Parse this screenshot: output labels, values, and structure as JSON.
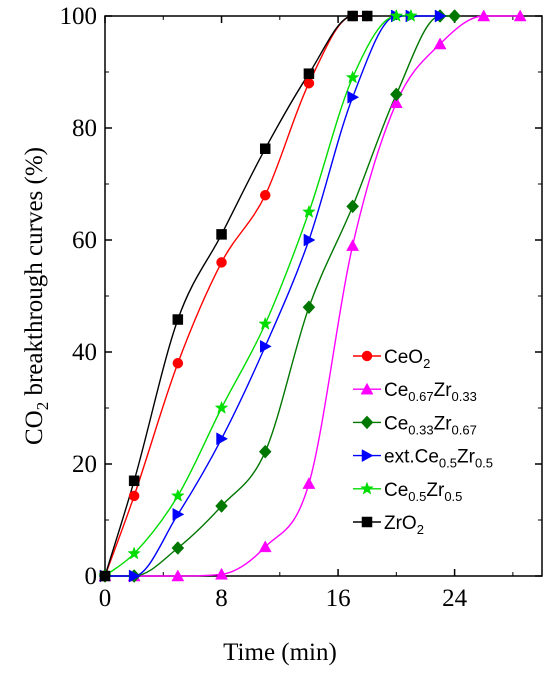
{
  "chart_data": {
    "type": "line",
    "title": "",
    "xlabel": "Time (min)",
    "ylabel": "CO2 breakthrough curves (%)",
    "ylabel_parts": {
      "main": "CO",
      "sub": "2",
      "rest": " breakthrough curves (%)"
    },
    "xlim": [
      0,
      30
    ],
    "ylim": [
      0,
      100
    ],
    "xticks": [
      0,
      8,
      16,
      24
    ],
    "yticks": [
      0,
      20,
      40,
      60,
      80,
      100
    ],
    "legend_position": "bottom-right",
    "series": [
      {
        "name": "CeO2",
        "label_parts": [
          [
            "CeO",
            ""
          ],
          [
            "2",
            "sub"
          ]
        ],
        "color": "#ff0000",
        "marker": "circle",
        "x": [
          0,
          2,
          5,
          8,
          11,
          14,
          17,
          18
        ],
        "y": [
          0,
          14.3,
          38,
          56,
          68,
          88,
          100,
          100
        ]
      },
      {
        "name": "Ce0.67Zr0.33",
        "label_parts": [
          [
            "Ce",
            ""
          ],
          [
            "0.67",
            "sub"
          ],
          [
            "Zr",
            ""
          ],
          [
            "0.33",
            "sub"
          ]
        ],
        "color": "#ff00ff",
        "marker": "triangle-up",
        "x": [
          0,
          2,
          5,
          8,
          11,
          14,
          17,
          20,
          23,
          26,
          28.5
        ],
        "y": [
          0,
          0,
          0,
          0.3,
          5.2,
          16.5,
          59,
          84.5,
          95,
          100,
          100
        ]
      },
      {
        "name": "Ce0.33Zr0.67",
        "label_parts": [
          [
            "Ce",
            ""
          ],
          [
            "0.33",
            "sub"
          ],
          [
            "Zr",
            ""
          ],
          [
            "0.67",
            "sub"
          ]
        ],
        "color": "#007700",
        "marker": "diamond",
        "x": [
          0,
          2,
          5,
          8,
          11,
          14,
          17,
          20,
          23,
          24
        ],
        "y": [
          0,
          0,
          5,
          12.5,
          22.2,
          48,
          66,
          86,
          100,
          100
        ]
      },
      {
        "name": "ext.Ce0.5Zr0.5",
        "label_parts": [
          [
            "ext.Ce",
            ""
          ],
          [
            "0.5",
            "sub"
          ],
          [
            "Zr",
            ""
          ],
          [
            "0.5",
            "sub"
          ]
        ],
        "color": "#0000ff",
        "marker": "triangle-right",
        "x": [
          0,
          2,
          5,
          8,
          11,
          14,
          17,
          20,
          21,
          23
        ],
        "y": [
          0,
          0,
          11,
          24.5,
          41,
          60,
          85.5,
          100,
          100,
          100
        ]
      },
      {
        "name": "Ce0.5Zr0.5",
        "label_parts": [
          [
            "Ce",
            ""
          ],
          [
            "0.5",
            "sub"
          ],
          [
            "Zr",
            ""
          ],
          [
            "0.5",
            "sub"
          ]
        ],
        "color": "#00dd00",
        "marker": "star",
        "x": [
          0,
          2,
          5,
          8,
          11,
          14,
          17,
          20,
          21
        ],
        "y": [
          0,
          4,
          14.3,
          30,
          45,
          65,
          89,
          100,
          100
        ]
      },
      {
        "name": "ZrO2",
        "label_parts": [
          [
            "ZrO",
            ""
          ],
          [
            "2",
            "sub"
          ]
        ],
        "color": "#000000",
        "marker": "square",
        "x": [
          0,
          2,
          5,
          8,
          11,
          14,
          17,
          18
        ],
        "y": [
          0,
          17,
          45.8,
          61,
          76.3,
          89.7,
          100,
          100
        ]
      }
    ]
  }
}
